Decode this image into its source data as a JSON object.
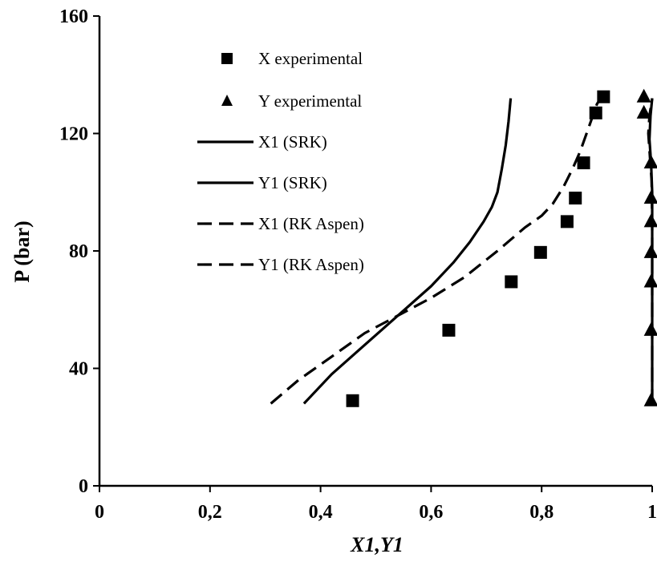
{
  "chart_data": {
    "type": "scatter",
    "xlabel": "X1,Y1",
    "ylabel": "P (bar)",
    "xlim": [
      0,
      1
    ],
    "ylim": [
      0,
      160
    ],
    "x_ticks": [
      "0",
      "0,2",
      "0,4",
      "0,6",
      "0,8",
      "1"
    ],
    "x_tick_values": [
      0,
      0.2,
      0.4,
      0.6,
      0.8,
      1.0
    ],
    "y_ticks": [
      "0",
      "40",
      "80",
      "120",
      "160"
    ],
    "y_tick_values": [
      0,
      40,
      80,
      120,
      160
    ],
    "legend_position": "top-center",
    "series": [
      {
        "name": "X experimental",
        "kind": "marker",
        "marker": "square",
        "x": [
          0.458,
          0.632,
          0.745,
          0.798,
          0.846,
          0.861,
          0.876,
          0.898,
          0.912
        ],
        "y": [
          29,
          53,
          69.5,
          79.5,
          90,
          98,
          110,
          127,
          132.5
        ]
      },
      {
        "name": "Y experimental",
        "kind": "marker",
        "marker": "triangle",
        "x": [
          0.998,
          0.998,
          0.998,
          0.998,
          0.998,
          0.998,
          0.998,
          0.985,
          0.985
        ],
        "y": [
          29,
          53,
          69.5,
          79.5,
          90,
          98,
          110,
          127,
          132.5
        ]
      },
      {
        "name": "X1 (SRK)",
        "kind": "line",
        "style": "solid",
        "x": [
          0.37,
          0.42,
          0.48,
          0.54,
          0.6,
          0.64,
          0.67,
          0.695,
          0.71,
          0.72,
          0.728,
          0.735,
          0.74,
          0.744
        ],
        "y": [
          28,
          38,
          48,
          58,
          68,
          76,
          83,
          90,
          95,
          100,
          108,
          116,
          124,
          132
        ]
      },
      {
        "name": "Y1 (SRK)",
        "kind": "line",
        "style": "solid",
        "x": [
          1.0,
          1.0,
          1.0,
          1.0,
          1.0,
          1.0,
          0.998,
          0.995,
          0.997,
          1.0
        ],
        "y": [
          28,
          40,
          55,
          70,
          85,
          100,
          110,
          118,
          126,
          132
        ]
      },
      {
        "name": "X1 (RK Aspen)",
        "kind": "line",
        "style": "dashed",
        "x": [
          0.31,
          0.36,
          0.42,
          0.48,
          0.54,
          0.6,
          0.66,
          0.72,
          0.77,
          0.8,
          0.82,
          0.84,
          0.856,
          0.87,
          0.885,
          0.9,
          0.91
        ],
        "y": [
          28,
          36,
          44,
          52,
          58,
          64,
          71,
          80,
          88,
          92,
          96,
          102,
          108,
          114,
          122,
          130,
          133
        ]
      },
      {
        "name": "Y1 (RK Aspen)",
        "kind": "line",
        "style": "dashed",
        "x": [
          1.0,
          1.0,
          1.0,
          1.0,
          1.0,
          0.999,
          0.996,
          0.993,
          0.995,
          1.0
        ],
        "y": [
          28,
          45,
          60,
          75,
          90,
          104,
          112,
          120,
          126,
          132
        ]
      }
    ]
  }
}
